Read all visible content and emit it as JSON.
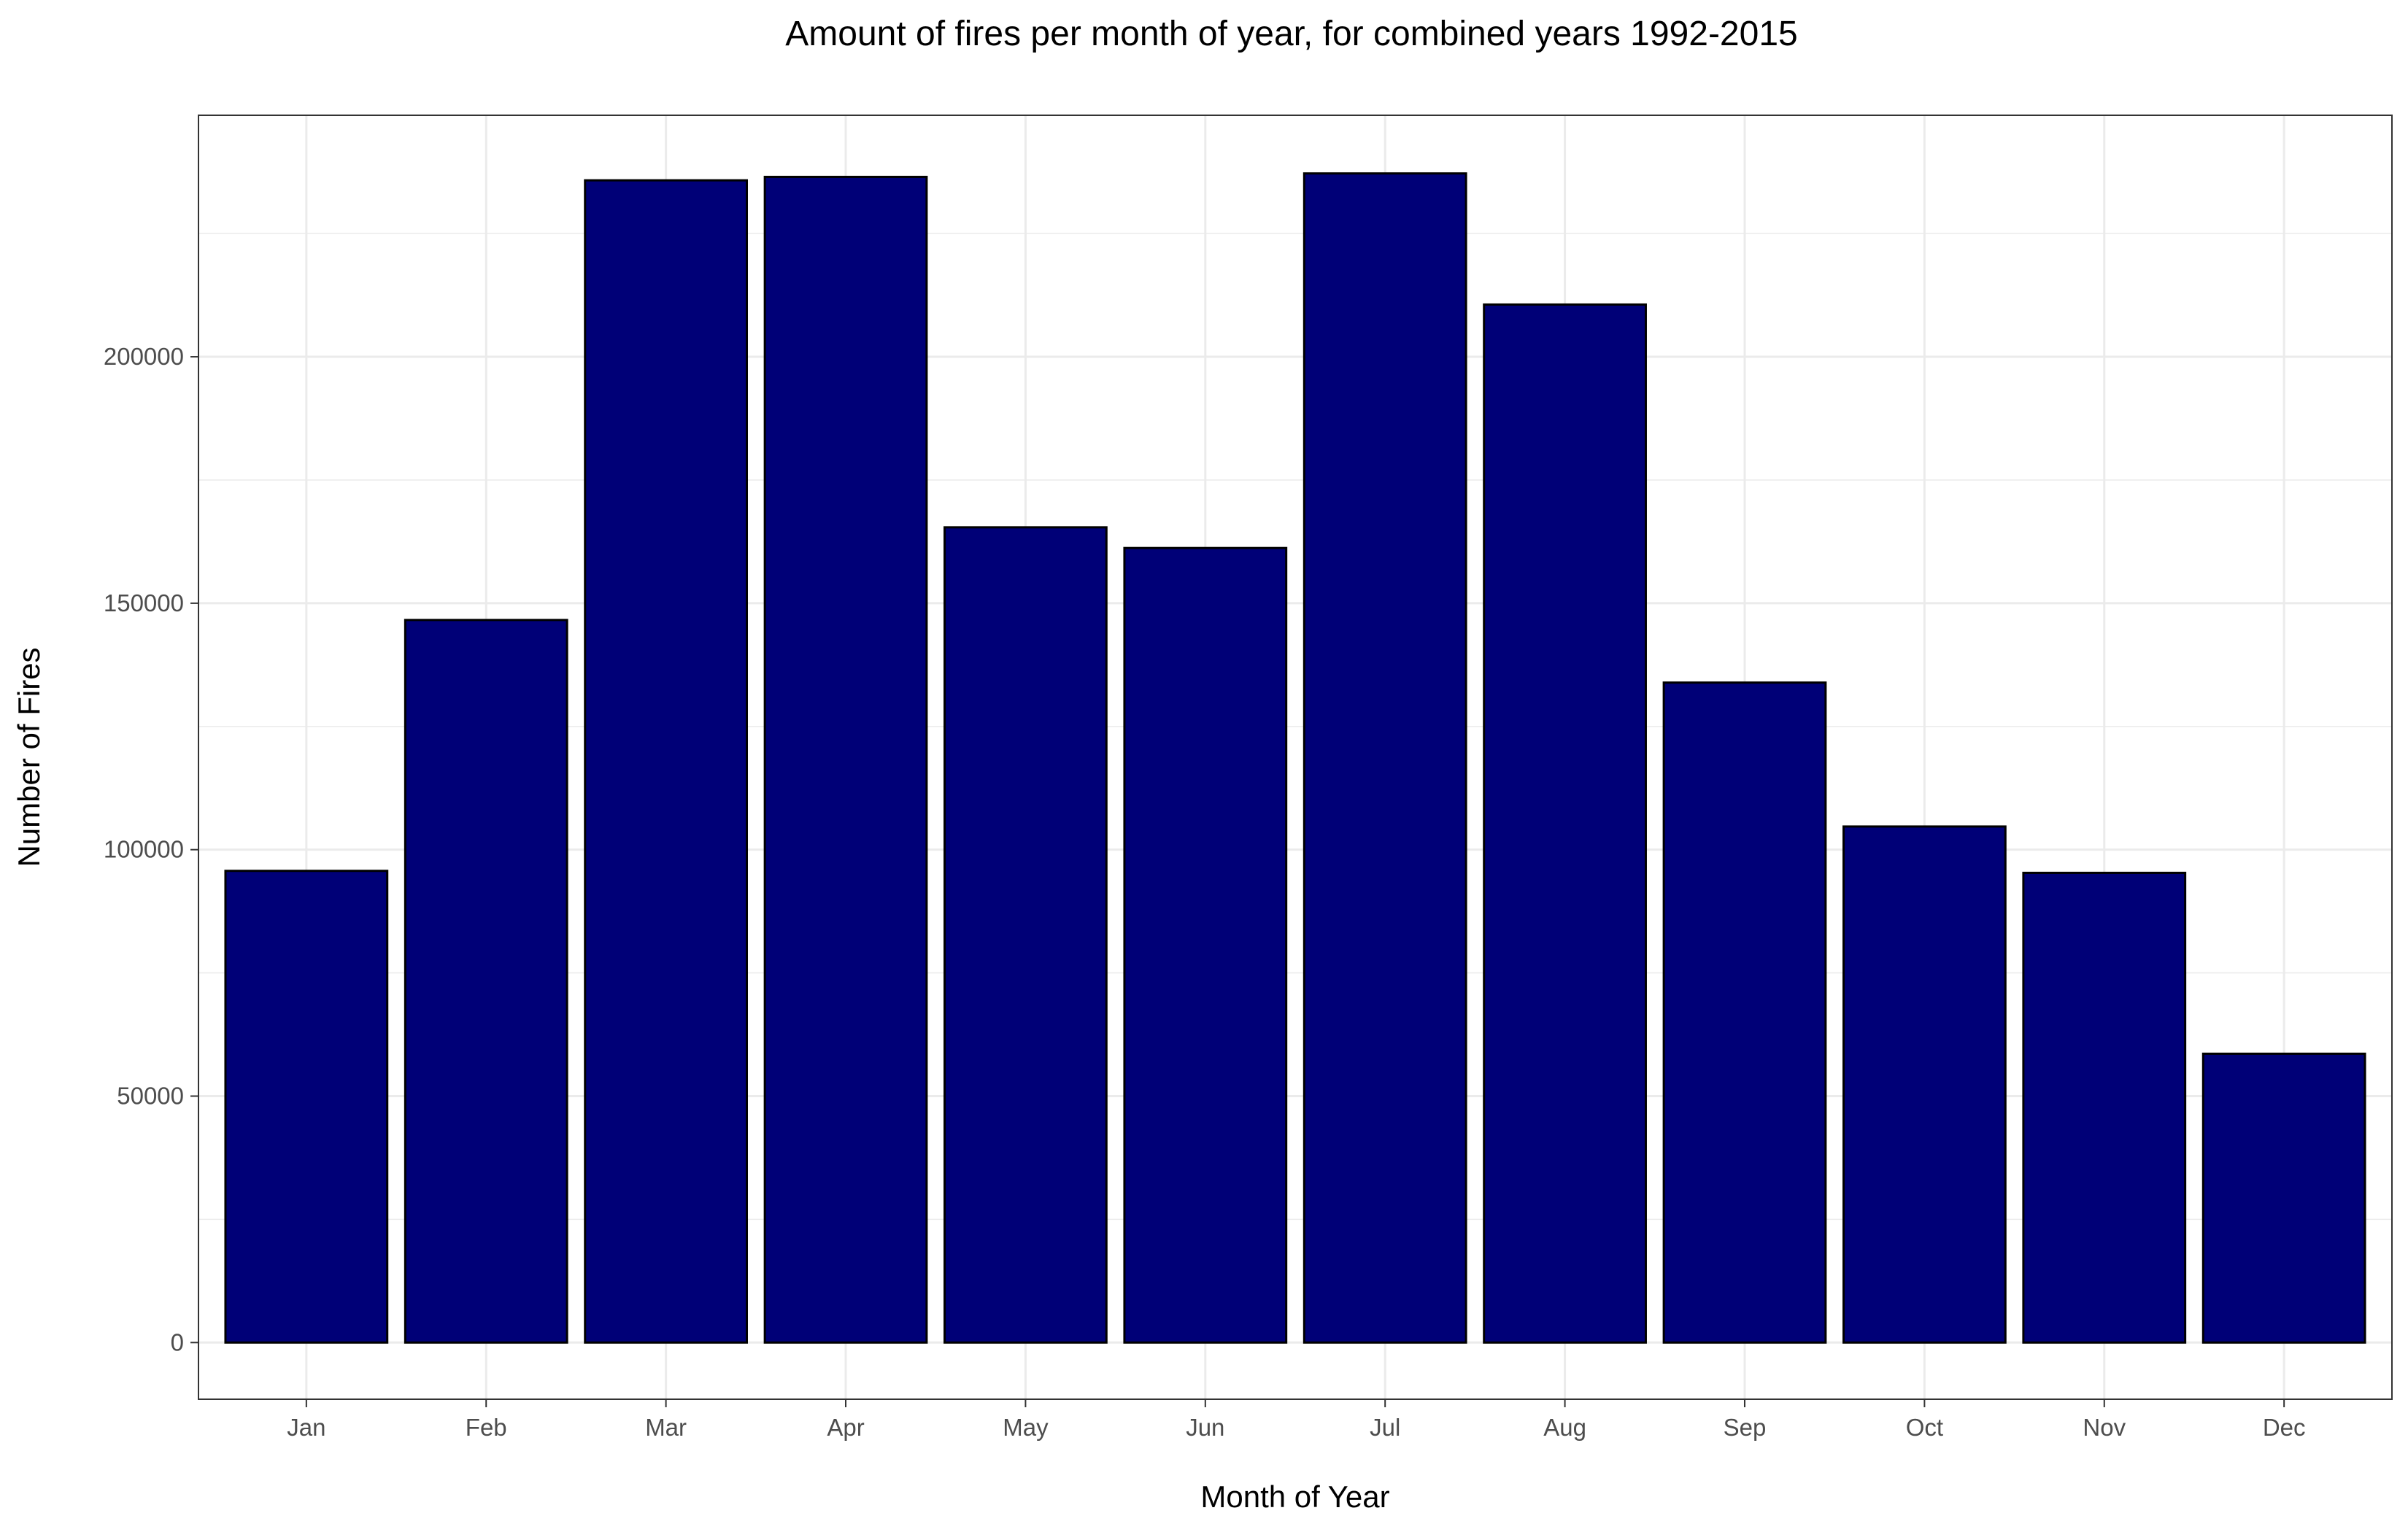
{
  "chart_data": {
    "type": "bar",
    "title": "Amount of fires per month of year, for combined years 1992-2015",
    "xlabel": "Month of Year",
    "ylabel": "Number of Fires",
    "categories": [
      "Jan",
      "Feb",
      "Mar",
      "Apr",
      "May",
      "Jun",
      "Jul",
      "Aug",
      "Sep",
      "Oct",
      "Nov",
      "Dec"
    ],
    "values": [
      95700,
      146600,
      235800,
      236500,
      165400,
      161200,
      237200,
      210600,
      133900,
      104700,
      95300,
      58600
    ],
    "ylim": [
      -11500,
      249000
    ],
    "yticks": [
      0,
      50000,
      100000,
      150000,
      200000
    ],
    "yticks_labels": [
      "0",
      "50000",
      "100000",
      "150000",
      "200000"
    ],
    "grid": true,
    "colors": {
      "bar_fill": "#000077",
      "bar_stroke": "#000000",
      "grid": "#ebebeb",
      "panel_border": "#333333"
    }
  }
}
